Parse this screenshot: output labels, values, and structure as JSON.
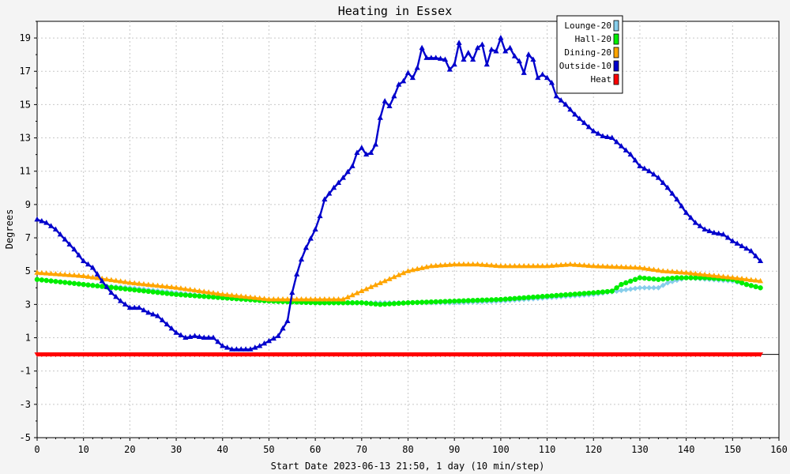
{
  "chart_data": {
    "type": "line",
    "title": "Heating in Essex",
    "xlabel": "Start Date 2023-06-13 21:50, 1 day (10 min/step)",
    "ylabel": "Degrees",
    "xlim": [
      0,
      160
    ],
    "ylim": [
      -5,
      20
    ],
    "x_ticks": [
      0,
      10,
      20,
      30,
      40,
      50,
      60,
      70,
      80,
      90,
      100,
      110,
      120,
      130,
      140,
      150,
      160
    ],
    "y_ticks": [
      -5,
      -3,
      -1,
      1,
      3,
      5,
      7,
      9,
      11,
      13,
      15,
      17,
      19
    ],
    "grid": true,
    "legend_position": "top-right",
    "series": [
      {
        "name": "Lounge-20",
        "color": "#87ceeb",
        "marker": "diamond",
        "points": [
          [
            0,
            4.5
          ],
          [
            10,
            4.2
          ],
          [
            20,
            4.0
          ],
          [
            30,
            3.7
          ],
          [
            40,
            3.4
          ],
          [
            50,
            3.2
          ],
          [
            60,
            3.1
          ],
          [
            70,
            3.1
          ],
          [
            80,
            3.1
          ],
          [
            90,
            3.1
          ],
          [
            100,
            3.2
          ],
          [
            110,
            3.4
          ],
          [
            120,
            3.6
          ],
          [
            125,
            3.8
          ],
          [
            130,
            4.0
          ],
          [
            134,
            4.0
          ],
          [
            136,
            4.3
          ],
          [
            140,
            4.6
          ],
          [
            150,
            4.4
          ],
          [
            156,
            4.0
          ]
        ]
      },
      {
        "name": "Hall-20",
        "color": "#00ee00",
        "marker": "circle",
        "points": [
          [
            0,
            4.5
          ],
          [
            10,
            4.2
          ],
          [
            20,
            3.9
          ],
          [
            30,
            3.6
          ],
          [
            40,
            3.4
          ],
          [
            50,
            3.2
          ],
          [
            60,
            3.1
          ],
          [
            70,
            3.1
          ],
          [
            74,
            3.0
          ],
          [
            80,
            3.1
          ],
          [
            90,
            3.2
          ],
          [
            100,
            3.3
          ],
          [
            110,
            3.5
          ],
          [
            120,
            3.7
          ],
          [
            124,
            3.8
          ],
          [
            126,
            4.2
          ],
          [
            130,
            4.6
          ],
          [
            134,
            4.5
          ],
          [
            138,
            4.6
          ],
          [
            144,
            4.6
          ],
          [
            150,
            4.5
          ],
          [
            153,
            4.2
          ],
          [
            156,
            4.0
          ]
        ]
      },
      {
        "name": "Dining-20",
        "color": "#ffa500",
        "marker": "triangle",
        "points": [
          [
            0,
            4.9
          ],
          [
            10,
            4.7
          ],
          [
            20,
            4.3
          ],
          [
            30,
            4.0
          ],
          [
            40,
            3.6
          ],
          [
            50,
            3.3
          ],
          [
            60,
            3.3
          ],
          [
            66,
            3.3
          ],
          [
            70,
            3.8
          ],
          [
            75,
            4.4
          ],
          [
            80,
            5.0
          ],
          [
            85,
            5.3
          ],
          [
            90,
            5.4
          ],
          [
            95,
            5.4
          ],
          [
            100,
            5.3
          ],
          [
            110,
            5.3
          ],
          [
            115,
            5.4
          ],
          [
            120,
            5.3
          ],
          [
            130,
            5.2
          ],
          [
            135,
            5.0
          ],
          [
            140,
            4.9
          ],
          [
            150,
            4.6
          ],
          [
            156,
            4.4
          ]
        ]
      },
      {
        "name": "Outside-10",
        "color": "#0000cc",
        "marker": "triangle",
        "points": [
          [
            0,
            8.1
          ],
          [
            2,
            7.9
          ],
          [
            4,
            7.5
          ],
          [
            6,
            6.9
          ],
          [
            8,
            6.3
          ],
          [
            10,
            5.6
          ],
          [
            12,
            5.2
          ],
          [
            14,
            4.4
          ],
          [
            16,
            3.7
          ],
          [
            18,
            3.2
          ],
          [
            20,
            2.8
          ],
          [
            22,
            2.8
          ],
          [
            24,
            2.5
          ],
          [
            26,
            2.3
          ],
          [
            28,
            1.8
          ],
          [
            30,
            1.3
          ],
          [
            32,
            1.0
          ],
          [
            34,
            1.1
          ],
          [
            36,
            1.0
          ],
          [
            38,
            1.0
          ],
          [
            40,
            0.5
          ],
          [
            42,
            0.3
          ],
          [
            44,
            0.3
          ],
          [
            46,
            0.3
          ],
          [
            48,
            0.5
          ],
          [
            50,
            0.8
          ],
          [
            52,
            1.1
          ],
          [
            54,
            2.0
          ],
          [
            55,
            3.7
          ],
          [
            56,
            4.8
          ],
          [
            57,
            5.7
          ],
          [
            58,
            6.4
          ],
          [
            60,
            7.5
          ],
          [
            61,
            8.3
          ],
          [
            62,
            9.3
          ],
          [
            64,
            10.0
          ],
          [
            66,
            10.6
          ],
          [
            68,
            11.3
          ],
          [
            69,
            12.1
          ],
          [
            70,
            12.4
          ],
          [
            71,
            12.0
          ],
          [
            72,
            12.1
          ],
          [
            73,
            12.6
          ],
          [
            74,
            14.2
          ],
          [
            75,
            15.2
          ],
          [
            76,
            14.9
          ],
          [
            77,
            15.5
          ],
          [
            78,
            16.2
          ],
          [
            79,
            16.4
          ],
          [
            80,
            16.9
          ],
          [
            81,
            16.6
          ],
          [
            82,
            17.2
          ],
          [
            83,
            18.4
          ],
          [
            84,
            17.8
          ],
          [
            86,
            17.8
          ],
          [
            88,
            17.7
          ],
          [
            89,
            17.1
          ],
          [
            90,
            17.4
          ],
          [
            91,
            18.7
          ],
          [
            92,
            17.7
          ],
          [
            93,
            18.1
          ],
          [
            94,
            17.7
          ],
          [
            95,
            18.4
          ],
          [
            96,
            18.6
          ],
          [
            97,
            17.4
          ],
          [
            98,
            18.3
          ],
          [
            99,
            18.2
          ],
          [
            100,
            19.0
          ],
          [
            101,
            18.2
          ],
          [
            102,
            18.4
          ],
          [
            103,
            17.9
          ],
          [
            104,
            17.6
          ],
          [
            105,
            16.9
          ],
          [
            106,
            18.0
          ],
          [
            107,
            17.7
          ],
          [
            108,
            16.6
          ],
          [
            109,
            16.8
          ],
          [
            110,
            16.6
          ],
          [
            111,
            16.3
          ],
          [
            112,
            15.5
          ],
          [
            114,
            15.0
          ],
          [
            116,
            14.4
          ],
          [
            118,
            13.9
          ],
          [
            120,
            13.4
          ],
          [
            122,
            13.1
          ],
          [
            124,
            13.0
          ],
          [
            126,
            12.5
          ],
          [
            128,
            12.0
          ],
          [
            130,
            11.3
          ],
          [
            132,
            11.0
          ],
          [
            134,
            10.6
          ],
          [
            136,
            10.0
          ],
          [
            138,
            9.3
          ],
          [
            140,
            8.5
          ],
          [
            142,
            7.9
          ],
          [
            144,
            7.5
          ],
          [
            146,
            7.3
          ],
          [
            148,
            7.2
          ],
          [
            150,
            6.8
          ],
          [
            152,
            6.5
          ],
          [
            154,
            6.2
          ],
          [
            156,
            5.6
          ]
        ]
      },
      {
        "name": "Heat",
        "color": "#ff0000",
        "marker": "triangle-down",
        "points": [
          [
            0,
            0.0
          ],
          [
            156,
            0.0
          ]
        ]
      }
    ]
  }
}
